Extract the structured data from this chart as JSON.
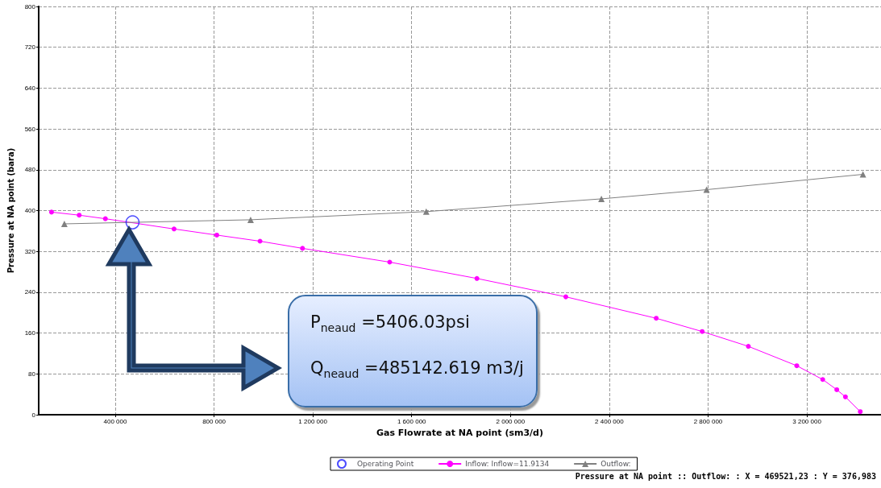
{
  "chart_data": {
    "type": "line",
    "xlabel": "Gas Flowrate at NA point (sm3/d)",
    "ylabel": "Pressure at NA point (bara)",
    "xlim": [
      90000,
      3500000
    ],
    "ylim": [
      0,
      800
    ],
    "xticks": [
      {
        "value": 400000,
        "label": "400 000"
      },
      {
        "value": 800000,
        "label": "800 000"
      },
      {
        "value": 1200000,
        "label": "1 200 000"
      },
      {
        "value": 1600000,
        "label": "1 600 000"
      },
      {
        "value": 2000000,
        "label": "2 000 000"
      },
      {
        "value": 2400000,
        "label": "2 400 000"
      },
      {
        "value": 2800000,
        "label": "2 800 000"
      },
      {
        "value": 3200000,
        "label": "3 200 000"
      }
    ],
    "yticks": [
      0,
      80,
      160,
      240,
      320,
      400,
      480,
      560,
      640,
      720,
      800
    ],
    "grid": true,
    "legend": "bottom",
    "line_style": "solid",
    "series": [
      {
        "name": "Operating Point",
        "type": "scatter",
        "marker": "circle",
        "color": "#1f1fff",
        "x": [
          470000
        ],
        "values": [
          377
        ]
      },
      {
        "name": "Inflow: Inflow=11.9134",
        "marker": "circle",
        "color": "#ff00ff",
        "x": [
          142000,
          254000,
          360000,
          638000,
          811000,
          986000,
          1158000,
          1511000,
          1864000,
          2224000,
          2590000,
          2776000,
          2963000,
          3159000,
          3264000,
          3321000,
          3356000,
          3416000
        ],
        "values": [
          397,
          391,
          384,
          364,
          352,
          340,
          326,
          299,
          267,
          231,
          189,
          163,
          134,
          96,
          69,
          49,
          35,
          6
        ]
      },
      {
        "name": "Outflow:",
        "marker": "triangle",
        "color": "#808080",
        "x": [
          194000,
          948000,
          1659000,
          2368000,
          2794000,
          3427000
        ],
        "values": [
          374,
          382,
          398,
          423,
          441,
          471
        ]
      }
    ],
    "annotations": [
      "P$_{neaud}$ =5406.03psi",
      "Q$_{neaud}$ =485142.619 m3/j",
      "Pressure at NA point :: Outflow: : X = 469521,23 : Y = 376,983"
    ]
  }
}
